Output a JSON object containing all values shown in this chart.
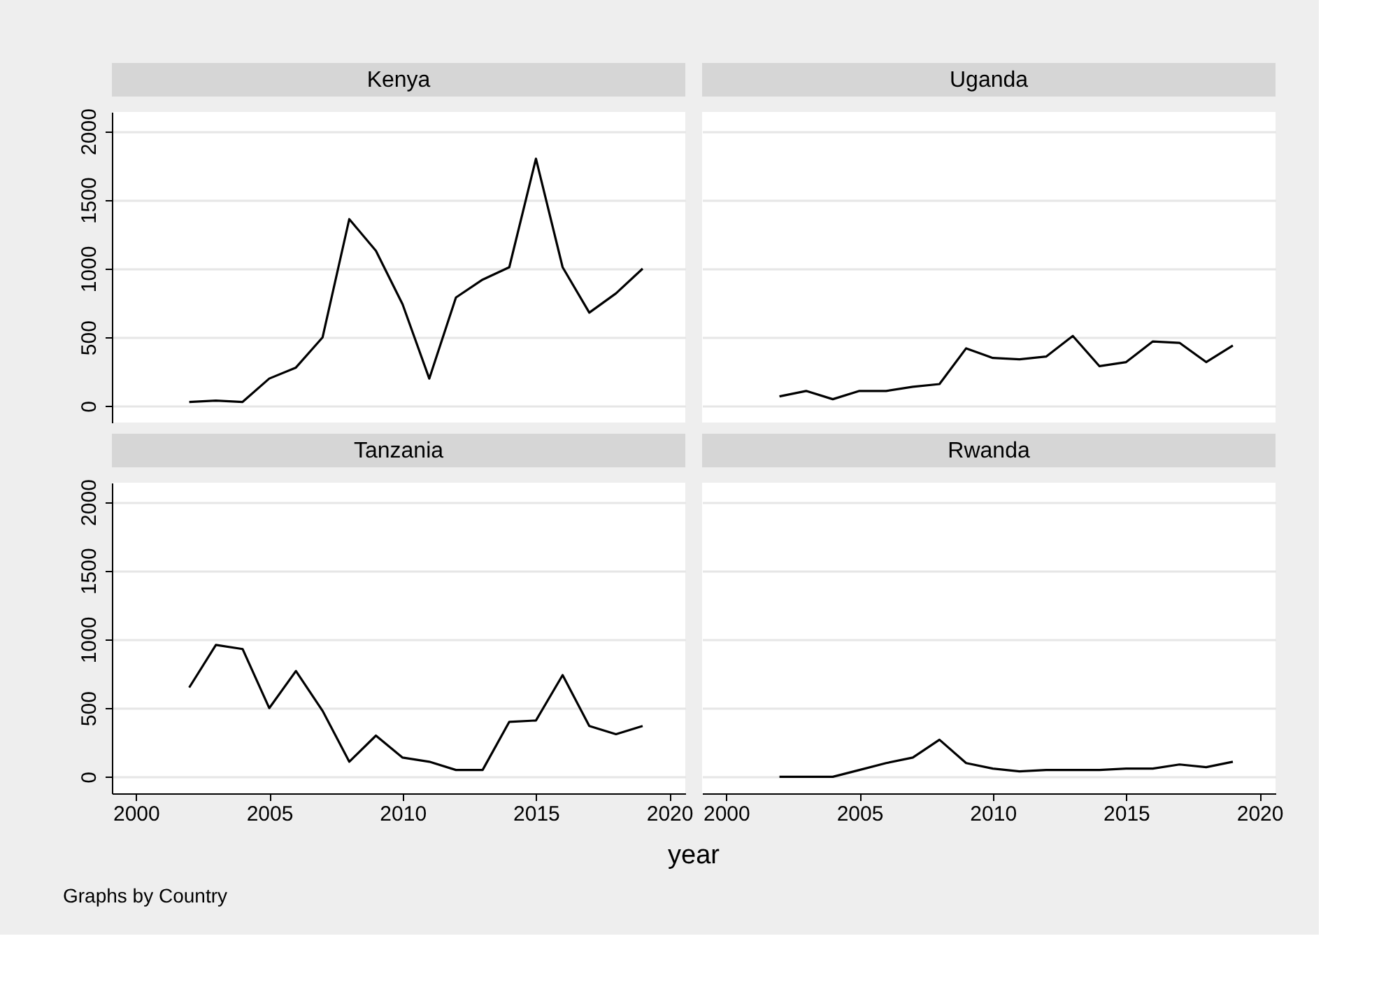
{
  "chart_data": [
    {
      "type": "line",
      "title": "Kenya",
      "x": [
        2002,
        2003,
        2004,
        2005,
        2006,
        2007,
        2008,
        2009,
        2010,
        2011,
        2012,
        2013,
        2014,
        2015,
        2016,
        2017,
        2018,
        2019
      ],
      "values": [
        30,
        40,
        30,
        200,
        280,
        500,
        1360,
        1130,
        740,
        200,
        790,
        920,
        1010,
        1800,
        1010,
        680,
        820,
        1000
      ],
      "color": "#000000",
      "xlim": [
        1999.1,
        2020.6
      ],
      "ylim": [
        -120,
        2140
      ],
      "xticks": [
        2000,
        2005,
        2010,
        2015,
        2020
      ],
      "yticks": [
        0,
        500,
        1000,
        1500,
        2000
      ],
      "grid": "y",
      "tick_labels": "y"
    },
    {
      "type": "line",
      "title": "Uganda",
      "x": [
        2002,
        2003,
        2004,
        2005,
        2006,
        2007,
        2008,
        2009,
        2010,
        2011,
        2012,
        2013,
        2014,
        2015,
        2016,
        2017,
        2018,
        2019
      ],
      "values": [
        70,
        110,
        50,
        110,
        110,
        140,
        160,
        420,
        350,
        340,
        360,
        510,
        290,
        320,
        470,
        460,
        320,
        440
      ],
      "color": "#000000",
      "xlim": [
        1999.1,
        2020.6
      ],
      "ylim": [
        -120,
        2140
      ],
      "xticks": [
        2000,
        2005,
        2010,
        2015,
        2020
      ],
      "yticks": [
        0,
        500,
        1000,
        1500,
        2000
      ],
      "grid": "y",
      "tick_labels": false
    },
    {
      "type": "line",
      "title": "Tanzania",
      "x": [
        2002,
        2003,
        2004,
        2005,
        2006,
        2007,
        2008,
        2009,
        2010,
        2011,
        2012,
        2013,
        2014,
        2015,
        2016,
        2017,
        2018,
        2019
      ],
      "values": [
        650,
        960,
        930,
        500,
        770,
        480,
        110,
        300,
        140,
        110,
        50,
        50,
        400,
        410,
        740,
        370,
        310,
        370
      ],
      "color": "#000000",
      "xlim": [
        1999.1,
        2020.6
      ],
      "ylim": [
        -120,
        2140
      ],
      "xticks": [
        2000,
        2005,
        2010,
        2015,
        2020
      ],
      "yticks": [
        0,
        500,
        1000,
        1500,
        2000
      ],
      "grid": "y"
    },
    {
      "type": "line",
      "title": "Rwanda",
      "x": [
        2002,
        2003,
        2004,
        2005,
        2006,
        2007,
        2008,
        2009,
        2010,
        2011,
        2012,
        2013,
        2014,
        2015,
        2016,
        2017,
        2018,
        2019
      ],
      "values": [
        0,
        0,
        0,
        50,
        100,
        140,
        270,
        100,
        60,
        40,
        50,
        50,
        50,
        60,
        60,
        90,
        70,
        110
      ],
      "color": "#000000",
      "xlim": [
        1999.1,
        2020.6
      ],
      "ylim": [
        -120,
        2140
      ],
      "xticks": [
        2000,
        2005,
        2010,
        2015,
        2020
      ],
      "yticks": [
        0,
        500,
        1000,
        1500,
        2000
      ],
      "grid": "y",
      "tick_labels": "x",
      "xlabel": "year",
      "annotations": [
        "Graphs by Country"
      ]
    }
  ]
}
